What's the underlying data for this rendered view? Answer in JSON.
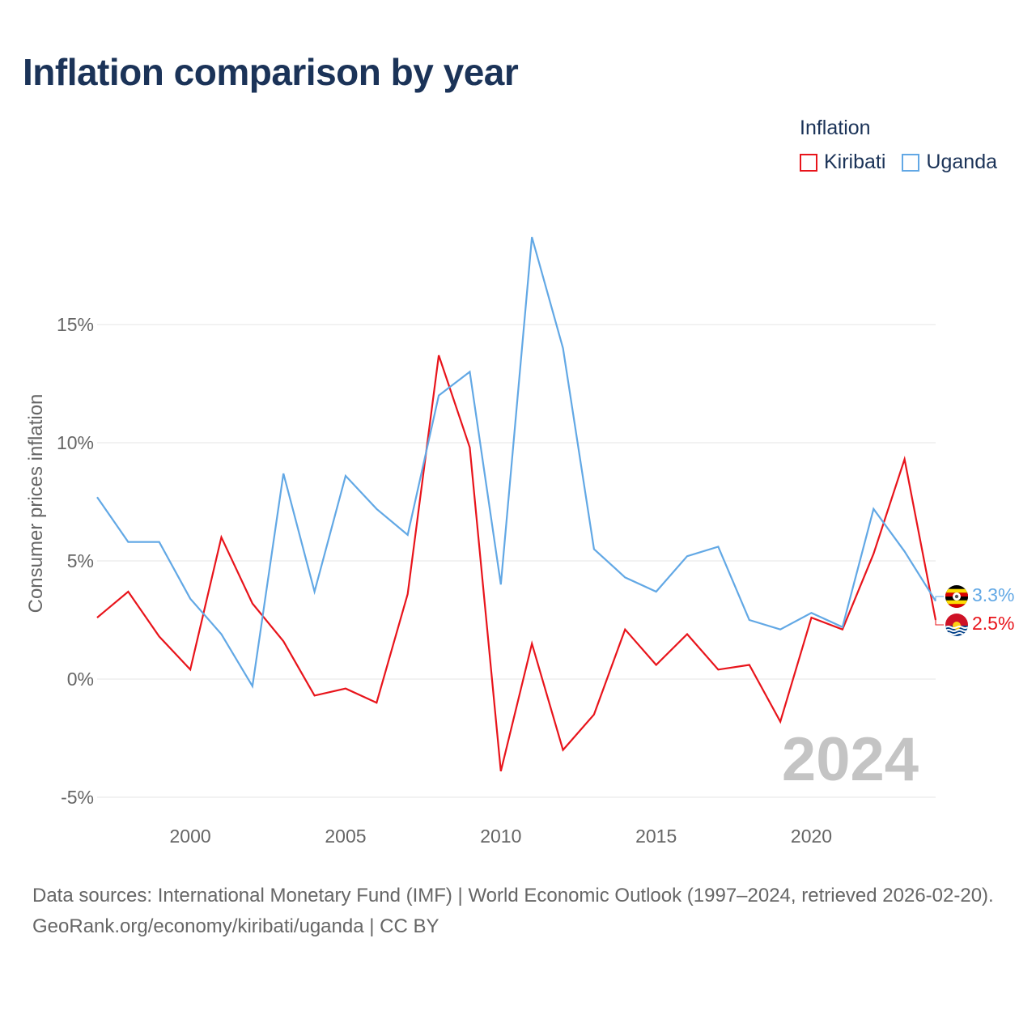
{
  "title": "Inflation comparison by year",
  "legend": {
    "title": "Inflation",
    "items": [
      {
        "name": "Kiribati",
        "color": "#e8141b"
      },
      {
        "name": "Uganda",
        "color": "#62a8e5"
      }
    ]
  },
  "chart_data": {
    "type": "line",
    "title": "Inflation comparison by year",
    "xlabel": "",
    "ylabel": "Consumer prices inflation",
    "xlim": [
      1997,
      2024
    ],
    "ylim": [
      -5,
      20
    ],
    "x_ticks": [
      2000,
      2005,
      2010,
      2015,
      2020
    ],
    "y_ticks": [
      -5,
      0,
      5,
      10,
      15
    ],
    "y_tick_labels": [
      "-5%",
      "0%",
      "5%",
      "10%",
      "15%"
    ],
    "grid": true,
    "legend_position": "top-right",
    "x": [
      1997,
      1998,
      1999,
      2000,
      2001,
      2002,
      2003,
      2004,
      2005,
      2006,
      2007,
      2008,
      2009,
      2010,
      2011,
      2012,
      2013,
      2014,
      2015,
      2016,
      2017,
      2018,
      2019,
      2020,
      2021,
      2022,
      2023,
      2024
    ],
    "series": [
      {
        "name": "Kiribati",
        "color": "#e8141b",
        "end_label": "2.5%",
        "values": [
          2.6,
          3.7,
          1.8,
          0.4,
          6.0,
          3.2,
          1.6,
          -0.7,
          -0.4,
          -1.0,
          3.6,
          13.7,
          9.8,
          -3.9,
          1.5,
          -3.0,
          -1.5,
          2.1,
          0.6,
          1.9,
          0.4,
          0.6,
          -1.8,
          2.6,
          2.1,
          5.3,
          9.3,
          2.5
        ]
      },
      {
        "name": "Uganda",
        "color": "#62a8e5",
        "end_label": "3.3%",
        "values": [
          7.7,
          5.8,
          5.8,
          3.4,
          1.9,
          -0.3,
          8.7,
          3.7,
          8.6,
          7.2,
          6.1,
          12.0,
          13.0,
          4.0,
          18.7,
          14.0,
          5.5,
          4.3,
          3.7,
          5.2,
          5.6,
          2.5,
          2.1,
          2.8,
          2.2,
          7.2,
          5.4,
          3.3
        ]
      }
    ],
    "watermark": "2024"
  },
  "footer": {
    "source": "Data sources: International Monetary Fund (IMF) | World Economic Outlook (1997–2024, retrieved 2026-02-20).",
    "credit": "GeoRank.org/economy/kiribati/uganda | CC BY"
  }
}
